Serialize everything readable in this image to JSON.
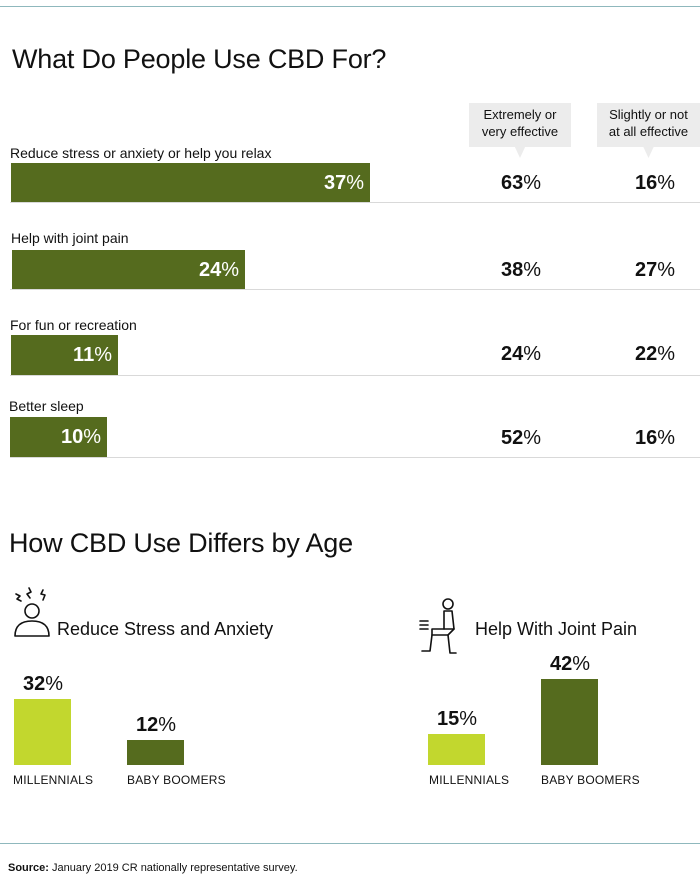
{
  "title": "What Do People Use CBD For?",
  "columns": {
    "effective": [
      "Extremely or",
      "very effective"
    ],
    "not_effective": [
      "Slightly or not",
      "at all effective"
    ]
  },
  "chart_data": [
    {
      "type": "bar",
      "title": "What Do People Use CBD For?",
      "orientation": "horizontal",
      "categories": [
        "Reduce stress or anxiety or help you relax",
        "Help with joint pain",
        "For fun or recreation",
        "Better sleep"
      ],
      "values": [
        37,
        24,
        11,
        10
      ],
      "value_labels": [
        "37",
        "24",
        "11",
        "10"
      ],
      "effective_labels": [
        "63",
        "38",
        "24",
        "52"
      ],
      "not_effective_labels": [
        "16",
        "27",
        "22",
        "16"
      ],
      "unit": "%",
      "color": "#556b1e"
    },
    {
      "type": "bar",
      "title": "How CBD Use Differs by Age",
      "subtitle": "Reduce Stress and Anxiety",
      "categories": [
        "MILLENNIALS",
        "BABY BOOMERS"
      ],
      "values": [
        32,
        12
      ],
      "value_labels": [
        "32",
        "12"
      ],
      "unit": "%",
      "colors": [
        "#c2d72e",
        "#556b1e"
      ]
    },
    {
      "type": "bar",
      "title": "How CBD Use Differs by Age",
      "subtitle": "Help With Joint Pain",
      "categories": [
        "MILLENNIALS",
        "BABY BOOMERS"
      ],
      "values": [
        15,
        42
      ],
      "value_labels": [
        "15",
        "42"
      ],
      "unit": "%",
      "colors": [
        "#c2d72e",
        "#556b1e"
      ]
    }
  ],
  "section2_title": "How CBD Use Differs by Age",
  "source": {
    "label": "Source:",
    "text": "January 2019 CR nationally representative survey."
  },
  "icons": [
    "stressed-person-icon",
    "knee-pain-person-icon"
  ]
}
